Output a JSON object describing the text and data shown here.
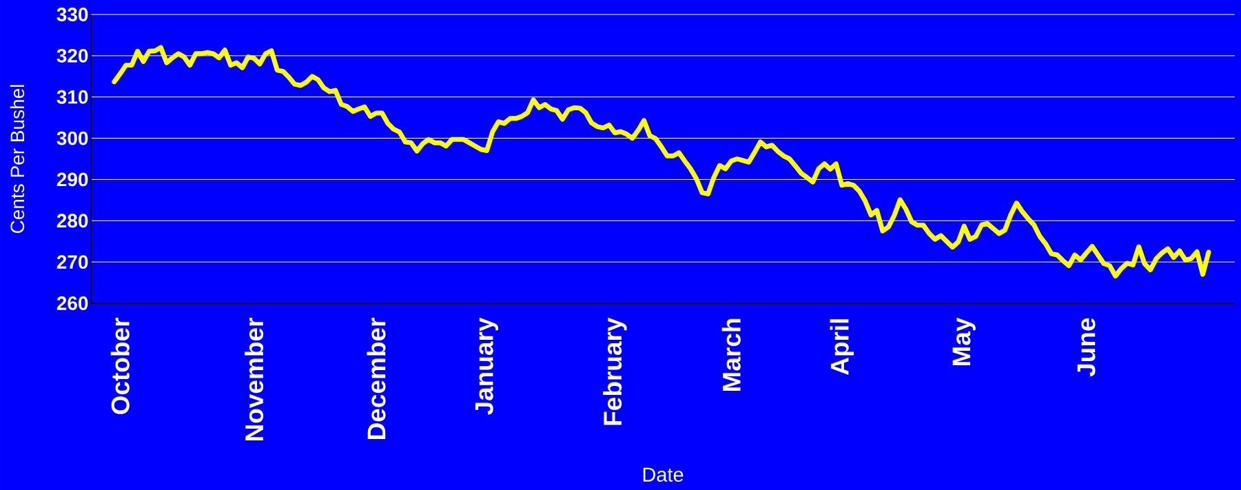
{
  "chart_data": {
    "type": "line",
    "xlabel": "Date",
    "ylabel": "Cents Per Bushel",
    "categories": [
      null,
      "October",
      null,
      null,
      null,
      null,
      null,
      null,
      null,
      null,
      null,
      null,
      null,
      null,
      null,
      null,
      null,
      null,
      null,
      null,
      null,
      null,
      null,
      null,
      "November",
      null,
      null,
      null,
      null,
      null,
      null,
      null,
      null,
      null,
      null,
      null,
      null,
      null,
      null,
      null,
      null,
      null,
      null,
      null,
      null,
      "December",
      null,
      null,
      null,
      null,
      null,
      null,
      null,
      null,
      null,
      null,
      null,
      null,
      null,
      null,
      null,
      null,
      null,
      null,
      "January",
      null,
      null,
      null,
      null,
      null,
      null,
      null,
      null,
      null,
      null,
      null,
      null,
      null,
      null,
      null,
      null,
      null,
      null,
      null,
      null,
      null,
      "February",
      null,
      null,
      null,
      null,
      null,
      null,
      null,
      null,
      null,
      null,
      null,
      null,
      null,
      null,
      null,
      null,
      null,
      null,
      null,
      "March",
      null,
      null,
      null,
      null,
      null,
      null,
      null,
      null,
      null,
      null,
      null,
      null,
      null,
      null,
      null,
      null,
      null,
      null,
      "April",
      null,
      null,
      null,
      null,
      null,
      null,
      null,
      null,
      null,
      null,
      null,
      null,
      null,
      null,
      null,
      null,
      null,
      null,
      null,
      null,
      "May",
      null,
      null,
      null,
      null,
      null,
      null,
      null,
      null,
      null,
      null,
      null,
      null,
      null,
      null,
      null,
      null,
      null,
      null,
      null,
      null,
      "June",
      null,
      null,
      null,
      null,
      null,
      null,
      null,
      null,
      null,
      null,
      null,
      null,
      null,
      null,
      null,
      null,
      null,
      null,
      null,
      null,
      null
    ],
    "series": [
      {
        "color": "#ffff00",
        "values": [
          313.7,
          315.6,
          317.7,
          317.7,
          321.1,
          318.6,
          321.1,
          321.2,
          322.0,
          318.3,
          319.5,
          320.5,
          319.7,
          317.7,
          320.5,
          320.5,
          320.8,
          320.5,
          319.5,
          321.4,
          317.7,
          318.3,
          317.1,
          319.7,
          319.4,
          318.0,
          320.5,
          321.2,
          316.5,
          316.2,
          314.8,
          313.1,
          312.8,
          313.6,
          315.0,
          314.2,
          312.2,
          311.3,
          311.6,
          308.2,
          307.7,
          306.5,
          307.1,
          307.6,
          305.3,
          306.1,
          306.1,
          303.6,
          302.2,
          301.5,
          299.1,
          298.9,
          296.9,
          298.7,
          299.7,
          298.9,
          298.9,
          298.1,
          299.7,
          299.7,
          299.7,
          298.9,
          298.1,
          297.3,
          297.0,
          301.6,
          304.0,
          303.6,
          304.8,
          304.8,
          305.3,
          306.2,
          309.3,
          307.4,
          308.2,
          307.1,
          306.7,
          304.6,
          306.9,
          307.4,
          307.3,
          306.2,
          303.7,
          302.8,
          302.5,
          303.2,
          301.3,
          301.6,
          301.0,
          300.0,
          301.9,
          304.3,
          300.6,
          299.9,
          297.9,
          295.7,
          295.7,
          296.5,
          294.5,
          292.6,
          290.2,
          286.8,
          286.5,
          290.5,
          293.4,
          292.6,
          294.5,
          295.0,
          294.6,
          294.2,
          296.6,
          299.1,
          297.9,
          298.3,
          296.8,
          295.7,
          295.0,
          293.3,
          291.5,
          290.5,
          289.4,
          292.6,
          293.8,
          292.5,
          293.8,
          288.6,
          289.0,
          288.6,
          287.2,
          284.8,
          281.4,
          282.5,
          277.5,
          278.5,
          281.3,
          285.1,
          282.8,
          279.7,
          278.9,
          278.9,
          276.9,
          275.5,
          276.4,
          275.0,
          273.6,
          274.9,
          278.7,
          275.5,
          276.2,
          279.0,
          279.3,
          278.1,
          276.9,
          277.7,
          281.4,
          284.3,
          282.2,
          280.5,
          279.0,
          276.2,
          274.4,
          272.0,
          271.7,
          270.3,
          269.1,
          271.7,
          270.5,
          272.2,
          273.8,
          271.7,
          269.6,
          269.1,
          266.6,
          268.4,
          269.7,
          269.3,
          273.7,
          269.6,
          268.1,
          270.8,
          272.2,
          273.2,
          271.1,
          272.7,
          270.5,
          270.8,
          272.5,
          267.0,
          272.4
        ]
      }
    ],
    "ylim": [
      260,
      330
    ],
    "yticks": [
      260,
      270,
      280,
      290,
      300,
      310,
      320,
      330
    ],
    "grid": "y",
    "marker": "none",
    "line_style": "solid"
  }
}
